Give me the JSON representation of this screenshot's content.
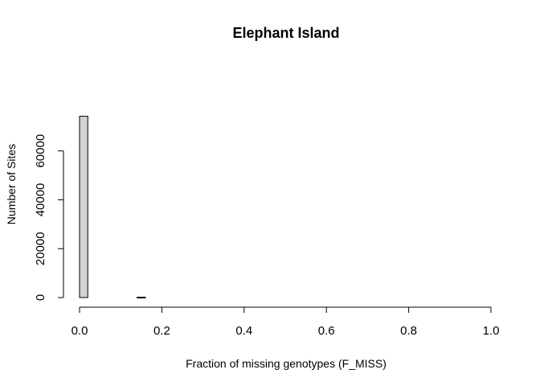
{
  "chart_data": {
    "type": "bar",
    "title": "Elephant Island",
    "xlabel": "Fraction of missing genotypes (F_MISS)",
    "ylabel": "Number of Sites",
    "xlim": [
      0,
      1
    ],
    "ylim": [
      0,
      74000
    ],
    "x_ticks": [
      0.0,
      0.2,
      0.4,
      0.6,
      0.8,
      1.0
    ],
    "x_tick_labels": [
      "0.0",
      "0.2",
      "0.4",
      "0.6",
      "0.8",
      "1.0"
    ],
    "y_ticks": [
      0,
      20000,
      40000,
      60000
    ],
    "y_tick_labels": [
      "0",
      "20000",
      "40000",
      "60000"
    ],
    "bin_width": 0.02,
    "bins": [
      {
        "x0": 0.0,
        "x1": 0.02,
        "count": 74200
      },
      {
        "x0": 0.14,
        "x1": 0.16,
        "count": 150
      }
    ],
    "bar_fill": "#d3d3d3",
    "bar_stroke": "#000000",
    "grid": false
  }
}
